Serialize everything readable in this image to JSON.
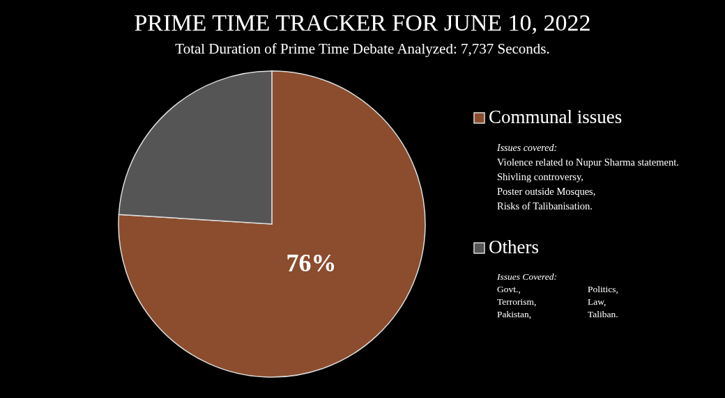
{
  "chart_data": {
    "type": "pie",
    "title": "PRIME TIME TRACKER FOR JUNE 10, 2022",
    "subtitle": "Total Duration of Prime Time Debate Analyzed: 7,737 Seconds.",
    "categories": [
      "Communal issues",
      "Others"
    ],
    "values": [
      76,
      24
    ],
    "colors": [
      "#8b4d2e",
      "#555555"
    ],
    "value_labels": [
      "76%",
      null
    ],
    "legend": "right",
    "annotations": [
      "Issues covered:",
      "Violence related to Nupur Sharma statement.",
      "Shivling controversy,",
      "Poster outside Mosques,",
      "Risks of Talibanisation.",
      "Issues Covered:",
      "Govt.,",
      "Politics,",
      "Terrorism,",
      "Law,",
      "Pakistan,",
      "Taliban."
    ]
  }
}
